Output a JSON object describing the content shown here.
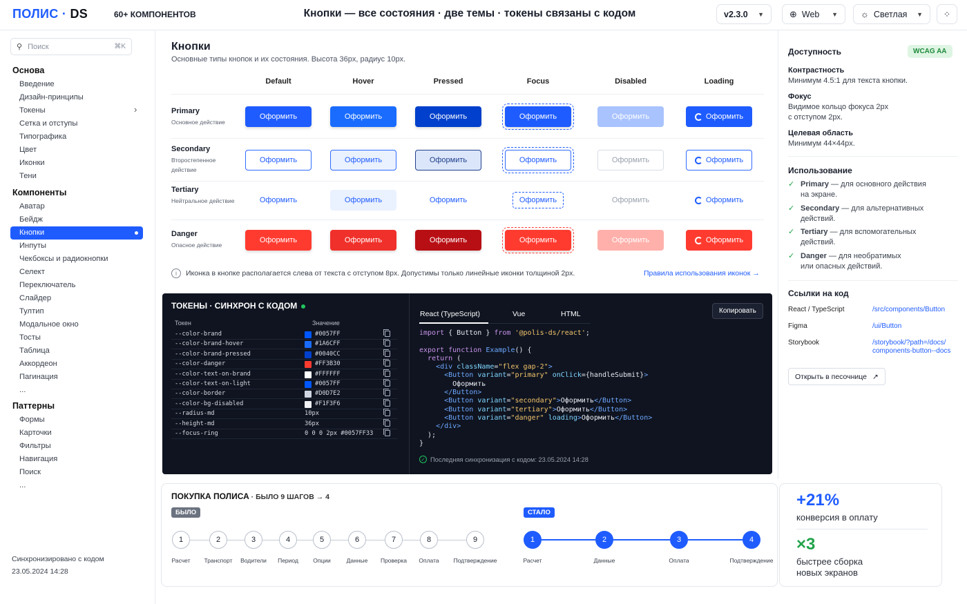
{
  "header": {
    "logo_main": "ПОЛИС",
    "logo_sep": " · ",
    "logo_ds": "DS",
    "components": "60+ КОМПОНЕНТОВ",
    "title": "Кнопки — все состояния · две темы · токены связаны с кодом",
    "version": "v2.3.0",
    "platform": "Web",
    "theme": "Светлая"
  },
  "sidebar": {
    "search_placeholder": "Поиск",
    "search_kbd": "⌘K",
    "sections": [
      {
        "title": "Основа",
        "items": [
          "Введение",
          "Дизайн-принципы",
          "Токены",
          "Сетка и отступы",
          "Типографика",
          "Цвет",
          "Иконки",
          "Тени"
        ]
      },
      {
        "title": "Компоненты",
        "items": [
          "Аватар",
          "Бейдж",
          "Кнопки",
          "Инпуты",
          "Чекбоксы и радиокнопки",
          "Селект",
          "Переключатель",
          "Слайдер",
          "Тултип",
          "Модальное окно",
          "Тосты",
          "Таблица",
          "Аккордеон",
          "Пагинация",
          "..."
        ]
      },
      {
        "title": "Паттерны",
        "items": [
          "Формы",
          "Карточки",
          "Фильтры",
          "Навигация",
          "Поиск",
          "..."
        ]
      }
    ],
    "sync_line1": "Синхронизировано с кодом",
    "sync_line2": "23.05.2024 14:28"
  },
  "buttons_section": {
    "title": "Кнопки",
    "subtitle": "Основные типы кнопок и их состояния. Высота 36px, радиус 10px.",
    "columns": [
      "Default",
      "Hover",
      "Pressed",
      "Focus",
      "Disabled",
      "Loading"
    ],
    "button_label": "Оформить",
    "rows": [
      {
        "name": "Primary",
        "desc": "Основное действие"
      },
      {
        "name": "Secondary",
        "desc": "Второстепенное действие"
      },
      {
        "name": "Tertiary",
        "desc": "Нейтральное действие"
      },
      {
        "name": "Danger",
        "desc": "Опасное действие"
      }
    ],
    "info": "Иконка в кнопке располагается слева от текста с отступом 8px. Допустимы только линейные иконки толщиной 2px.",
    "icon_rules_link": "Правила использования иконок →"
  },
  "tokens": {
    "title": "ТОКЕНЫ · СИНХРОН С КОДОМ",
    "col_token": "Токен",
    "col_value": "Значение",
    "rows": [
      {
        "name": "--color-brand",
        "value": "#0057FF",
        "swatch": "#0057FF"
      },
      {
        "name": "--color-brand-hover",
        "value": "#1A6CFF",
        "swatch": "#1A6CFF"
      },
      {
        "name": "--color-brand-pressed",
        "value": "#0040CC",
        "swatch": "#0040CC"
      },
      {
        "name": "--color-danger",
        "value": "#FF3B30",
        "swatch": "#FF3B30"
      },
      {
        "name": "--color-text-on-brand",
        "value": "#FFFFFF",
        "swatch": "#FFFFFF"
      },
      {
        "name": "--color-text-on-light",
        "value": "#0057FF",
        "swatch": "#0057FF"
      },
      {
        "name": "--color-border",
        "value": "#D0D7E2",
        "swatch": "#D0D7E2"
      },
      {
        "name": "--color-bg-disabled",
        "value": "#F1F3F6",
        "swatch": "#F1F3F6"
      },
      {
        "name": "--radius-md",
        "value": "10px",
        "swatch": ""
      },
      {
        "name": "--height-md",
        "value": "36px",
        "swatch": ""
      },
      {
        "name": "--focus-ring",
        "value": "0 0 0 2px #0057FF33",
        "swatch": ""
      }
    ],
    "tabs": [
      "React (TypeScript)",
      "Vue",
      "HTML"
    ],
    "copy": "Копировать",
    "last_sync": "Последняя синхронизация с кодом: 23.05.2024 14:28"
  },
  "flow": {
    "title": "ПОКУПКА ПОЛИСА",
    "subtitle": " · БЫЛО 9 ШАГОВ → 4",
    "before_tag": "БЫЛО",
    "after_tag": "СТАЛО",
    "before_steps": [
      "Расчет",
      "Транспорт",
      "Водители",
      "Период",
      "Опции",
      "Данные",
      "Проверка",
      "Оплата",
      "Подтверждение"
    ],
    "after_steps": [
      "Расчет",
      "Данные",
      "Оплата",
      "Подтверждение"
    ]
  },
  "stats": {
    "n1": "+21%",
    "l1": "конверсия в оплату",
    "n2": "×3",
    "l2a": "быстрее сборка",
    "l2b": "новых экранов"
  },
  "right": {
    "access_title": "Доступность",
    "wcag": "WCAG AA",
    "contrast_t": "Контрастность",
    "contrast_d": "Минимум 4.5:1 для текста кнопки.",
    "focus_t": "Фокус",
    "focus_d1": "Видимое кольцо фокуса 2px",
    "focus_d2": "с отступом 2px.",
    "target_t": "Целевая область",
    "target_d": "Минимум 44×44px.",
    "usage_title": "Использование",
    "usage": [
      {
        "b": "Primary",
        "l1": " — для основного действия",
        "l2": "на экране."
      },
      {
        "b": "Secondary",
        "l1": " — для альтернативных",
        "l2": "действий."
      },
      {
        "b": "Tertiary",
        "l1": " — для вспомогательных",
        "l2": "действий."
      },
      {
        "b": "Danger",
        "l1": " — для необратимых",
        "l2": "или опасных действий."
      }
    ],
    "links_title": "Ссылки на код",
    "links": [
      {
        "label": "React / TypeScript",
        "value": "/src/components/Button"
      },
      {
        "label": "Figma",
        "value": "/ui/Button"
      },
      {
        "label": "Storybook",
        "value": "/storybook/?path=/docs/ components-button--docs"
      }
    ],
    "sandbox": "Открыть в песочнице"
  }
}
